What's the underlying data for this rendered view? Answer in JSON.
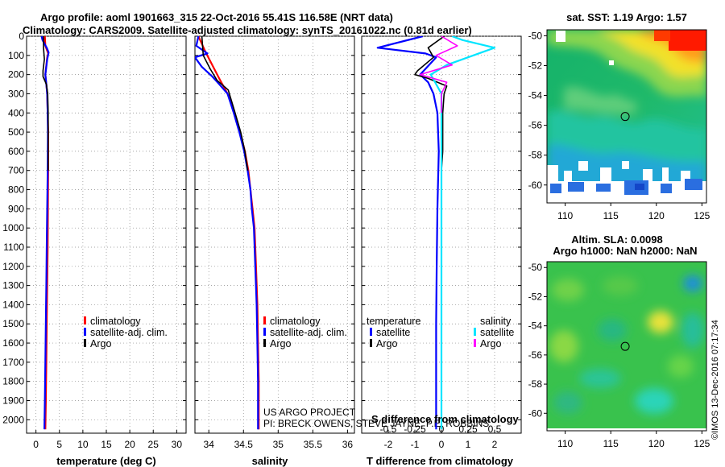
{
  "title_line1": "Argo profile: aoml 1901663_315 22-Oct-2016 55.41S 116.58E (NRT data)",
  "title_line2": "Climatology: CARS2009. Satellite-adjusted climatology: synTS_20161022.nc (0.81d earlier)",
  "credit_line1": "US ARGO PROJECT",
  "credit_line2": "PI: BRECK OWENS, STEVE JAYNE, P.E. ROBBINS",
  "watermark": "©IMOS 13-Dec-2016 07:17:34",
  "colors": {
    "climatology": "#ff0000",
    "satellite": "#0000ff",
    "argo": "#000000",
    "sal_satellite": "#00e5ff",
    "sal_argo": "#ff00ff"
  },
  "map_sst": {
    "title": "sat. SST: 1.19 Argo: 1.57",
    "lat_ticks": [
      "-50",
      "-52",
      "-54",
      "-56",
      "-58",
      "-60"
    ],
    "lon_ticks": [
      "110",
      "115",
      "120",
      "125"
    ],
    "argo_position": {
      "lon": 116.58,
      "lat": -55.41
    }
  },
  "map_sla": {
    "title_line1": "Altim. SLA: 0.0098",
    "title_line2": "Argo h1000: NaN h2000: NaN",
    "lat_ticks": [
      "-50",
      "-52",
      "-54",
      "-56",
      "-58",
      "-60"
    ],
    "lon_ticks": [
      "110",
      "115",
      "120",
      "125"
    ],
    "argo_position": {
      "lon": 116.58,
      "lat": -55.41
    }
  },
  "chart_data": [
    {
      "type": "line",
      "xlabel": "temperature (deg C)",
      "xlim": [
        -2,
        32
      ],
      "xticks": [
        "0",
        "5",
        "10",
        "15",
        "20",
        "25",
        "30"
      ],
      "ylim": [
        2070,
        0
      ],
      "yticks": [
        "0",
        "100",
        "200",
        "300",
        "400",
        "500",
        "600",
        "700",
        "800",
        "900",
        "1000",
        "1100",
        "1200",
        "1300",
        "1400",
        "1500",
        "1600",
        "1700",
        "1800",
        "1900",
        "2000"
      ],
      "legend": [
        "climatology",
        "satellite-adj. clim.",
        "Argo"
      ],
      "series": [
        {
          "name": "climatology",
          "color": "#ff0000",
          "points": [
            [
              1.9,
              0
            ],
            [
              2.0,
              50
            ],
            [
              2.6,
              90
            ],
            [
              2.4,
              110
            ],
            [
              2.0,
              200
            ],
            [
              2.2,
              250
            ],
            [
              2.4,
              300
            ],
            [
              2.5,
              400
            ],
            [
              2.6,
              500
            ],
            [
              2.6,
              700
            ],
            [
              2.55,
              900
            ],
            [
              2.5,
              1100
            ],
            [
              2.4,
              1300
            ],
            [
              2.3,
              1500
            ],
            [
              2.2,
              1700
            ],
            [
              2.1,
              1900
            ],
            [
              2.0,
              2050
            ]
          ]
        },
        {
          "name": "satellite-adj. clim.",
          "color": "#0000ff",
          "points": [
            [
              1.2,
              0
            ],
            [
              1.4,
              20
            ],
            [
              2.3,
              60
            ],
            [
              2.7,
              85
            ],
            [
              2.4,
              120
            ],
            [
              2.0,
              200
            ],
            [
              2.2,
              250
            ],
            [
              2.4,
              300
            ],
            [
              2.5,
              400
            ],
            [
              2.55,
              500
            ],
            [
              2.5,
              700
            ],
            [
              2.4,
              900
            ],
            [
              2.3,
              1100
            ],
            [
              2.2,
              1300
            ],
            [
              2.1,
              1500
            ],
            [
              2.0,
              1700
            ],
            [
              1.9,
              1900
            ],
            [
              1.8,
              2050
            ]
          ]
        },
        {
          "name": "Argo",
          "color": "#000000",
          "points": [
            [
              1.6,
              0
            ],
            [
              1.6,
              60
            ],
            [
              1.8,
              120
            ],
            [
              1.5,
              180
            ],
            [
              1.5,
              210
            ],
            [
              2.2,
              250
            ],
            [
              2.5,
              300
            ],
            [
              2.6,
              400
            ],
            [
              2.6,
              500
            ],
            [
              2.6,
              700
            ]
          ]
        }
      ]
    },
    {
      "type": "line",
      "xlabel": "salinity",
      "xlim": [
        33.8,
        36.1
      ],
      "xticks": [
        "34",
        "34.5",
        "35",
        "35.5",
        "36"
      ],
      "ylim": [
        2070,
        0
      ],
      "legend": [
        "climatology",
        "satellite-adj. clim.",
        "Argo"
      ],
      "series": [
        {
          "name": "climatology",
          "color": "#ff0000",
          "points": [
            [
              33.85,
              0
            ],
            [
              33.95,
              80
            ],
            [
              34.05,
              150
            ],
            [
              34.15,
              220
            ],
            [
              34.27,
              300
            ],
            [
              34.37,
              400
            ],
            [
              34.45,
              500
            ],
            [
              34.52,
              600
            ],
            [
              34.57,
              700
            ],
            [
              34.6,
              800
            ],
            [
              34.63,
              900
            ],
            [
              34.66,
              1000
            ],
            [
              34.68,
              1200
            ],
            [
              34.7,
              1400
            ],
            [
              34.71,
              1600
            ],
            [
              34.72,
              1800
            ],
            [
              34.72,
              2050
            ]
          ]
        },
        {
          "name": "satellite-adj. clim.",
          "color": "#0000ff",
          "points": [
            [
              33.85,
              0
            ],
            [
              33.82,
              50
            ],
            [
              33.98,
              90
            ],
            [
              33.8,
              110
            ],
            [
              33.9,
              160
            ],
            [
              34.05,
              210
            ],
            [
              34.15,
              250
            ],
            [
              34.27,
              300
            ],
            [
              34.36,
              400
            ],
            [
              34.44,
              500
            ],
            [
              34.51,
              600
            ],
            [
              34.56,
              700
            ],
            [
              34.6,
              800
            ],
            [
              34.62,
              900
            ],
            [
              34.65,
              1000
            ],
            [
              34.67,
              1200
            ],
            [
              34.69,
              1400
            ],
            [
              34.7,
              1600
            ],
            [
              34.71,
              1800
            ],
            [
              34.71,
              2050
            ]
          ]
        },
        {
          "name": "Argo",
          "color": "#000000",
          "points": [
            [
              33.9,
              0
            ],
            [
              33.92,
              100
            ],
            [
              34.02,
              170
            ],
            [
              34.12,
              230
            ],
            [
              34.28,
              280
            ],
            [
              34.38,
              400
            ],
            [
              34.46,
              500
            ],
            [
              34.52,
              600
            ],
            [
              34.56,
              700
            ]
          ]
        }
      ]
    },
    {
      "type": "line",
      "xlabel": "T difference from climatology",
      "xlabel_top": "S difference from climatology",
      "xlim": [
        -3,
        3
      ],
      "xticks": [
        "-2",
        "-1",
        "0",
        "1",
        "2"
      ],
      "xticks_top": [
        "-0.5",
        "-0.25",
        "0",
        "0.25",
        "0.5"
      ],
      "ylim": [
        2070,
        0
      ],
      "legend_temperature": {
        "heading": "temperature",
        "items": [
          "satellite",
          "Argo"
        ]
      },
      "legend_salinity": {
        "heading": "salinity",
        "items": [
          "satellite",
          "Argo"
        ]
      },
      "series": [
        {
          "name": "temperature satellite",
          "color": "#0000ff",
          "points": [
            [
              -0.7,
              0
            ],
            [
              -2.4,
              60
            ],
            [
              -0.6,
              90
            ],
            [
              -0.2,
              110
            ],
            [
              -0.8,
              200
            ],
            [
              -0.5,
              240
            ],
            [
              -0.3,
              300
            ],
            [
              -0.15,
              400
            ],
            [
              -0.1,
              600
            ],
            [
              -0.15,
              900
            ],
            [
              -0.18,
              1200
            ],
            [
              -0.2,
              1500
            ],
            [
              -0.2,
              1800
            ],
            [
              -0.2,
              2050
            ]
          ]
        },
        {
          "name": "temperature Argo",
          "color": "#000000",
          "points": [
            [
              0.1,
              0
            ],
            [
              -0.5,
              60
            ],
            [
              -0.3,
              110
            ],
            [
              -0.9,
              180
            ],
            [
              -1.0,
              200
            ],
            [
              -0.5,
              220
            ],
            [
              0.2,
              260
            ],
            [
              0.1,
              300
            ],
            [
              0.05,
              400
            ],
            [
              0.05,
              600
            ],
            [
              0,
              700
            ]
          ]
        },
        {
          "name": "salinity satellite",
          "color": "#00e5ff",
          "points": [
            [
              0.1,
              0
            ],
            [
              0.2,
              20
            ],
            [
              0.5,
              60
            ],
            [
              0.3,
              100
            ],
            [
              0.05,
              150
            ],
            [
              -0.1,
              200
            ],
            [
              0,
              300
            ],
            [
              0,
              500
            ],
            [
              0,
              800
            ],
            [
              0,
              1200
            ],
            [
              0,
              1600
            ],
            [
              0,
              2050
            ]
          ]
        },
        {
          "name": "salinity Argo",
          "color": "#ff00ff",
          "points": [
            [
              0,
              0
            ],
            [
              0.15,
              50
            ],
            [
              -0.05,
              100
            ],
            [
              0.1,
              150
            ],
            [
              -0.2,
              200
            ],
            [
              0.05,
              240
            ],
            [
              0,
              300
            ],
            [
              0,
              400
            ]
          ]
        }
      ]
    }
  ]
}
